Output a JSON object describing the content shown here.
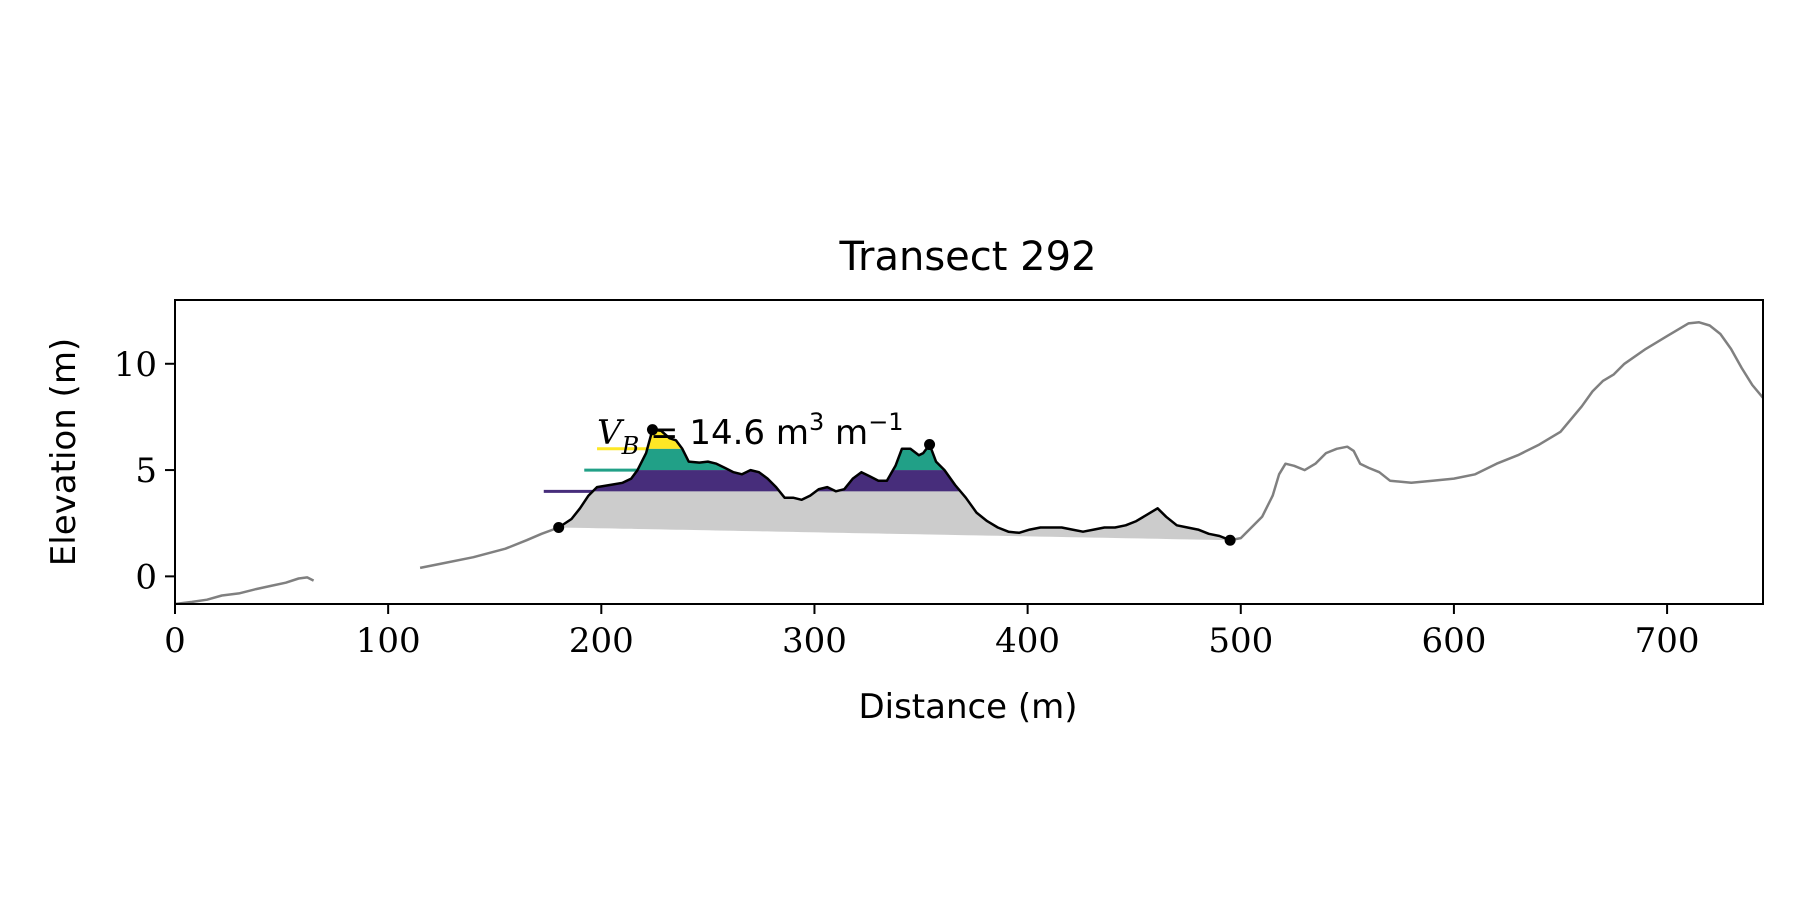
{
  "chart_data": {
    "type": "area",
    "title": "Transect 292",
    "xlabel": "Distance (m)",
    "ylabel": "Elevation (m)",
    "xlim": [
      0,
      745
    ],
    "ylim": [
      -1.3,
      13.0
    ],
    "xticks": [
      0,
      100,
      200,
      300,
      400,
      500,
      600,
      700
    ],
    "yticks": [
      0,
      5,
      10
    ],
    "grid": false,
    "legend": "none",
    "annotation": {
      "symbol": "V",
      "subscript": "B",
      "text": " = 14.6 m",
      "exp1": "3",
      "unit2": " m",
      "exp2": "−1",
      "x": 198,
      "y": 6.0
    },
    "colors": {
      "profile": "#808080",
      "dune_profile": "#000000",
      "fill": "#cccccc",
      "band_low": "#472d7b",
      "band_mid": "#21a087",
      "band_high": "#fde725"
    },
    "profile_segments": [
      [
        [
          0,
          -1.3
        ],
        [
          8,
          -1.2
        ],
        [
          15,
          -1.1
        ],
        [
          22,
          -0.9
        ],
        [
          30,
          -0.8
        ],
        [
          38,
          -0.6
        ],
        [
          45,
          -0.45
        ],
        [
          52,
          -0.3
        ],
        [
          58,
          -0.1
        ],
        [
          62,
          -0.05
        ],
        [
          65,
          -0.2
        ]
      ],
      [
        [
          115,
          0.4
        ],
        [
          125,
          0.6
        ],
        [
          140,
          0.9
        ],
        [
          155,
          1.3
        ],
        [
          165,
          1.7
        ],
        [
          172,
          2.0
        ],
        [
          180,
          2.3
        ]
      ],
      [
        [
          495,
          1.7
        ],
        [
          500,
          1.8
        ],
        [
          505,
          2.3
        ],
        [
          510,
          2.8
        ],
        [
          515,
          3.8
        ],
        [
          518,
          4.8
        ],
        [
          521,
          5.3
        ],
        [
          525,
          5.2
        ],
        [
          530,
          5.0
        ],
        [
          535,
          5.3
        ],
        [
          540,
          5.8
        ],
        [
          545,
          6.0
        ],
        [
          550,
          6.1
        ],
        [
          553,
          5.9
        ],
        [
          556,
          5.3
        ],
        [
          560,
          5.1
        ],
        [
          565,
          4.9
        ],
        [
          570,
          4.5
        ],
        [
          580,
          4.4
        ],
        [
          590,
          4.5
        ],
        [
          600,
          4.6
        ],
        [
          610,
          4.8
        ],
        [
          620,
          5.3
        ],
        [
          630,
          5.7
        ],
        [
          640,
          6.2
        ],
        [
          650,
          6.8
        ],
        [
          660,
          8.0
        ],
        [
          665,
          8.7
        ],
        [
          670,
          9.2
        ],
        [
          675,
          9.5
        ],
        [
          680,
          10.0
        ],
        [
          690,
          10.7
        ],
        [
          700,
          11.3
        ],
        [
          710,
          11.9
        ],
        [
          715,
          11.95
        ],
        [
          720,
          11.8
        ],
        [
          725,
          11.4
        ],
        [
          730,
          10.7
        ],
        [
          735,
          9.8
        ],
        [
          740,
          9.0
        ],
        [
          745,
          8.4
        ]
      ]
    ],
    "dune_profile": [
      [
        180,
        2.3
      ],
      [
        186,
        2.7
      ],
      [
        190,
        3.2
      ],
      [
        194,
        3.8
      ],
      [
        198,
        4.2
      ],
      [
        204,
        4.3
      ],
      [
        210,
        4.4
      ],
      [
        214,
        4.6
      ],
      [
        217,
        5.0
      ],
      [
        221,
        5.8
      ],
      [
        224,
        6.9
      ],
      [
        228,
        6.85
      ],
      [
        232,
        6.5
      ],
      [
        235,
        6.4
      ],
      [
        238,
        6.0
      ],
      [
        241,
        5.4
      ],
      [
        246,
        5.35
      ],
      [
        250,
        5.4
      ],
      [
        254,
        5.3
      ],
      [
        258,
        5.1
      ],
      [
        262,
        4.9
      ],
      [
        266,
        4.8
      ],
      [
        270,
        5.0
      ],
      [
        274,
        4.9
      ],
      [
        278,
        4.6
      ],
      [
        282,
        4.2
      ],
      [
        286,
        3.7
      ],
      [
        290,
        3.7
      ],
      [
        294,
        3.6
      ],
      [
        298,
        3.8
      ],
      [
        302,
        4.1
      ],
      [
        306,
        4.2
      ],
      [
        310,
        4.0
      ],
      [
        314,
        4.1
      ],
      [
        318,
        4.6
      ],
      [
        322,
        4.9
      ],
      [
        326,
        4.7
      ],
      [
        330,
        4.5
      ],
      [
        334,
        4.5
      ],
      [
        338,
        5.2
      ],
      [
        341,
        6.0
      ],
      [
        345,
        6.0
      ],
      [
        349,
        5.7
      ],
      [
        351,
        5.8
      ],
      [
        354,
        6.2
      ],
      [
        357,
        5.4
      ],
      [
        361,
        5.0
      ],
      [
        366,
        4.3
      ],
      [
        371,
        3.7
      ],
      [
        376,
        3.0
      ],
      [
        381,
        2.6
      ],
      [
        386,
        2.3
      ],
      [
        391,
        2.1
      ],
      [
        396,
        2.05
      ],
      [
        401,
        2.2
      ],
      [
        406,
        2.3
      ],
      [
        411,
        2.3
      ],
      [
        416,
        2.3
      ],
      [
        421,
        2.2
      ],
      [
        426,
        2.1
      ],
      [
        431,
        2.2
      ],
      [
        436,
        2.3
      ],
      [
        441,
        2.3
      ],
      [
        446,
        2.4
      ],
      [
        451,
        2.6
      ],
      [
        456,
        2.9
      ],
      [
        461,
        3.2
      ],
      [
        465,
        2.8
      ],
      [
        470,
        2.4
      ],
      [
        475,
        2.3
      ],
      [
        480,
        2.2
      ],
      [
        485,
        2.0
      ],
      [
        490,
        1.9
      ],
      [
        495,
        1.7
      ]
    ],
    "endpoints": [
      [
        180,
        2.3
      ],
      [
        224,
        6.9
      ],
      [
        354,
        6.2
      ],
      [
        495,
        1.7
      ]
    ],
    "fill_baseline": [
      [
        180,
        2.3
      ],
      [
        495,
        1.7
      ]
    ],
    "bands": [
      {
        "color_key": "band_low",
        "level": 4.0,
        "line_start": 173
      },
      {
        "color_key": "band_mid",
        "level": 5.0,
        "line_start": 192
      },
      {
        "color_key": "band_high",
        "level": 6.0,
        "line_start": 198
      }
    ]
  }
}
